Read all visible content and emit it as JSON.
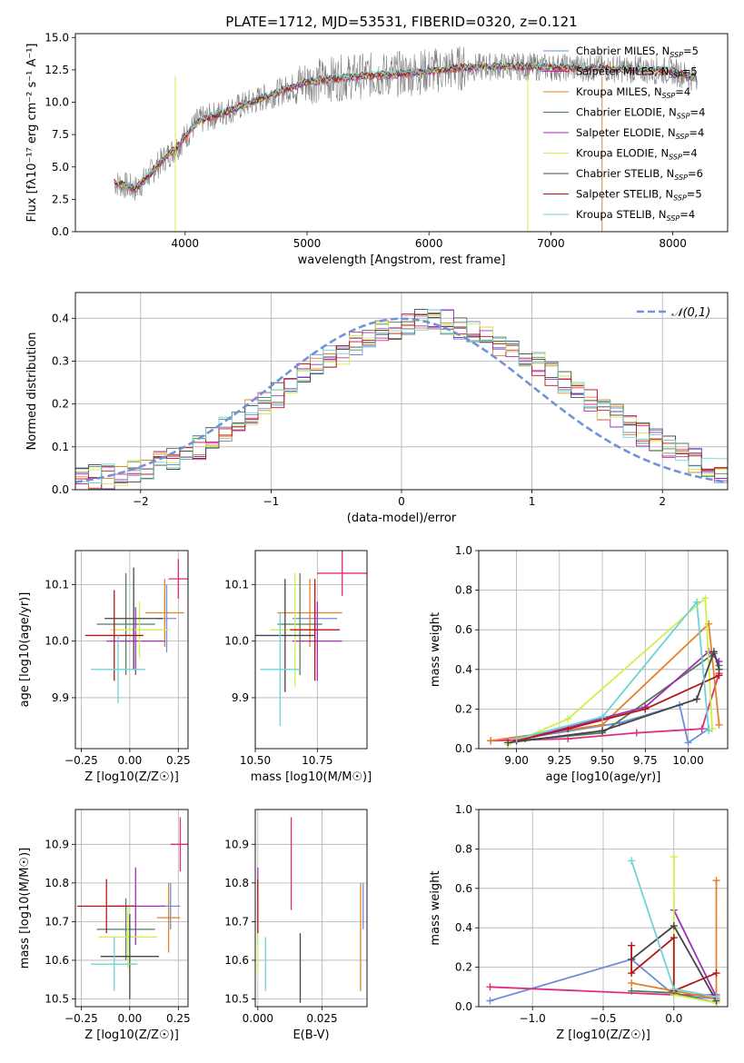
{
  "figure_title": "PLATE=1712, MJD=53531, FIBERID=0320, z=0.121",
  "colors": {
    "axes": "#000000",
    "grid": "#b0b0b0",
    "noise_spectrum": "#808080",
    "normal_curve": "#6f93d9"
  },
  "models": [
    {
      "name": "Chabrier MILES",
      "nssp": "5",
      "color": "#6f8fda"
    },
    {
      "name": "Salpeter MILES",
      "nssp": "5",
      "color": "#e02c7e"
    },
    {
      "name": "Kroupa MILES",
      "nssp": "4",
      "color": "#e3822b"
    },
    {
      "name": "Chabrier ELODIE",
      "nssp": "4",
      "color": "#4f7f58"
    },
    {
      "name": "Salpeter ELODIE",
      "nssp": "4",
      "color": "#a02fb8"
    },
    {
      "name": "Kroupa ELODIE",
      "nssp": "4",
      "color": "#d2ee4e"
    },
    {
      "name": "Chabrier STELIB",
      "nssp": "6",
      "color": "#454545"
    },
    {
      "name": "Salpeter STELIB",
      "nssp": "5",
      "color": "#b51616"
    },
    {
      "name": "Kroupa STELIB",
      "nssp": "4",
      "color": "#6fd3d6"
    }
  ],
  "chart_data": [
    {
      "id": "spectrum",
      "type": "line",
      "title": "PLATE=1712, MJD=53531, FIBERID=0320, z=0.121",
      "xlabel": "wavelength [Angstrom, rest frame]",
      "ylabel": "Flux [fλ10⁻¹⁷ erg cm⁻² s⁻¹ A⁻¹]",
      "xlim": [
        3100,
        8450
      ],
      "ylim": [
        0,
        15.3
      ],
      "xticks": [
        "4000",
        "5000",
        "6000",
        "7000",
        "8000"
      ],
      "yticks": [
        "0.0",
        "2.5",
        "5.0",
        "7.5",
        "10.0",
        "12.5",
        "15.0"
      ],
      "grid": false,
      "legend_position": "top-right",
      "legend_labels": [
        "Chabrier MILES, N_SSP=5",
        "Salpeter MILES, N_SSP=5",
        "Kroupa MILES, N_SSP=4",
        "Chabrier ELODIE, N_SSP=4",
        "Salpeter ELODIE, N_SSP=4",
        "Kroupa ELODIE, N_SSP=4",
        "Chabrier STELIB, N_SSP=6",
        "Salpeter STELIB, N_SSP=5",
        "Kroupa STELIB, N_SSP=4"
      ],
      "wavelength_range": [
        3420,
        8200
      ],
      "continuum": [
        {
          "x": 3420,
          "y": 3.8
        },
        {
          "x": 3600,
          "y": 3.3
        },
        {
          "x": 3800,
          "y": 5.4
        },
        {
          "x": 3950,
          "y": 6.7
        },
        {
          "x": 4100,
          "y": 8.5
        },
        {
          "x": 4400,
          "y": 9.5
        },
        {
          "x": 4800,
          "y": 10.9
        },
        {
          "x": 5000,
          "y": 11.6
        },
        {
          "x": 5400,
          "y": 12.0
        },
        {
          "x": 5800,
          "y": 12.2
        },
        {
          "x": 6200,
          "y": 12.6
        },
        {
          "x": 6600,
          "y": 12.8
        },
        {
          "x": 7000,
          "y": 12.7
        },
        {
          "x": 7500,
          "y": 12.6
        },
        {
          "x": 8000,
          "y": 12.4
        },
        {
          "x": 8200,
          "y": 11.8
        }
      ]
    },
    {
      "id": "residual-histogram",
      "type": "line",
      "xlabel": "(data-model)/error",
      "ylabel": "Normed distribution",
      "xlim": [
        -2.5,
        2.5
      ],
      "ylim": [
        0,
        0.46
      ],
      "xticks": [
        "−2",
        "−1",
        "0",
        "1",
        "2"
      ],
      "yticks": [
        "0.0",
        "0.1",
        "0.2",
        "0.3",
        "0.4"
      ],
      "grid": true,
      "legend_position": "top-right",
      "legend_label": "𝒩(0,1)",
      "bin_width": 0.1,
      "histogram_envelope": [
        0.025,
        0.03,
        0.03,
        0.035,
        0.04,
        0.05,
        0.06,
        0.075,
        0.09,
        0.1,
        0.12,
        0.14,
        0.16,
        0.18,
        0.2,
        0.22,
        0.24,
        0.27,
        0.29,
        0.31,
        0.32,
        0.34,
        0.35,
        0.37,
        0.38,
        0.39,
        0.4,
        0.4,
        0.39,
        0.38,
        0.37,
        0.36,
        0.34,
        0.33,
        0.31,
        0.29,
        0.27,
        0.25,
        0.23,
        0.21,
        0.19,
        0.17,
        0.15,
        0.13,
        0.115,
        0.1,
        0.085,
        0.07,
        0.055,
        0.045
      ]
    },
    {
      "id": "age-vs-z",
      "type": "scatter",
      "xlabel": "Z [log10(Z/Z☉)]",
      "ylabel": "age [log10(age/yr)]",
      "xlim": [
        -0.28,
        0.3
      ],
      "ylim": [
        9.81,
        10.16
      ],
      "xticks": [
        "−0.25",
        "0.00",
        "0.25"
      ],
      "yticks": [
        "9.9",
        "10.0",
        "10.1"
      ],
      "grid": true,
      "points": [
        {
          "x": 0.19,
          "y": 10.04,
          "xerr": 0.05,
          "yerr": 0.06,
          "color": "#6f8fda"
        },
        {
          "x": 0.25,
          "y": 10.11,
          "xerr": 0.05,
          "yerr": 0.035,
          "color": "#e02c7e"
        },
        {
          "x": 0.18,
          "y": 10.05,
          "xerr": 0.1,
          "yerr": 0.06,
          "color": "#e3822b"
        },
        {
          "x": -0.02,
          "y": 10.03,
          "xerr": 0.15,
          "yerr": 0.09,
          "color": "#4f7f58"
        },
        {
          "x": 0.03,
          "y": 10.0,
          "xerr": 0.15,
          "yerr": 0.06,
          "color": "#a02fb8"
        },
        {
          "x": 0.05,
          "y": 10.02,
          "xerr": 0.15,
          "yerr": 0.05,
          "color": "#d2ee4e"
        },
        {
          "x": 0.02,
          "y": 10.04,
          "xerr": 0.15,
          "yerr": 0.09,
          "color": "#454545"
        },
        {
          "x": -0.08,
          "y": 10.01,
          "xerr": 0.15,
          "yerr": 0.08,
          "color": "#b51616"
        },
        {
          "x": -0.06,
          "y": 9.95,
          "xerr": 0.14,
          "yerr": 0.06,
          "color": "#6fd3d6"
        }
      ]
    },
    {
      "id": "age-vs-mass",
      "type": "scatter",
      "xlabel": "mass [log10(M/M☉)]",
      "ylabel": "",
      "xlim": [
        10.5,
        10.95
      ],
      "ylim": [
        9.81,
        10.16
      ],
      "xticks": [
        "10.50",
        "10.75"
      ],
      "yticks": [
        "9.9",
        "10.0",
        "10.1"
      ],
      "grid": true,
      "points": [
        {
          "x": 10.74,
          "y": 10.04,
          "xerr": 0.09,
          "yerr": 0.06,
          "color": "#6f8fda"
        },
        {
          "x": 10.85,
          "y": 10.12,
          "xerr": 0.1,
          "yerr": 0.04,
          "color": "#e02c7e"
        },
        {
          "x": 10.72,
          "y": 10.05,
          "xerr": 0.13,
          "yerr": 0.06,
          "color": "#e3822b"
        },
        {
          "x": 10.68,
          "y": 10.03,
          "xerr": 0.09,
          "yerr": 0.09,
          "color": "#4f7f58"
        },
        {
          "x": 10.75,
          "y": 10.0,
          "xerr": 0.1,
          "yerr": 0.07,
          "color": "#a02fb8"
        },
        {
          "x": 10.66,
          "y": 10.02,
          "xerr": 0.1,
          "yerr": 0.1,
          "color": "#d2ee4e"
        },
        {
          "x": 10.62,
          "y": 10.01,
          "xerr": 0.12,
          "yerr": 0.1,
          "color": "#454545"
        },
        {
          "x": 10.74,
          "y": 10.02,
          "xerr": 0.1,
          "yerr": 0.09,
          "color": "#b51616"
        },
        {
          "x": 10.6,
          "y": 9.95,
          "xerr": 0.08,
          "yerr": 0.1,
          "color": "#6fd3d6"
        }
      ]
    },
    {
      "id": "weight-vs-age",
      "type": "line",
      "xlabel": "age [log10(age/yr)]",
      "ylabel": "mass weight",
      "xlim": [
        8.78,
        10.23
      ],
      "ylim": [
        0,
        1.0
      ],
      "xticks": [
        "9.00",
        "9.25",
        "9.50",
        "9.75",
        "10.00"
      ],
      "yticks": [
        "0.0",
        "0.2",
        "0.4",
        "0.6",
        "0.8",
        "1.0"
      ],
      "grid": true,
      "series": [
        {
          "name": "Chabrier MILES",
          "color": "#6f8fda",
          "points": [
            [
              9.1,
              0.06
            ],
            [
              9.6,
              0.13
            ],
            [
              9.95,
              0.22
            ],
            [
              10.0,
              0.03
            ],
            [
              10.12,
              0.1
            ]
          ]
        },
        {
          "name": "Salpeter MILES",
          "color": "#e02c7e",
          "points": [
            [
              8.85,
              0.04
            ],
            [
              9.3,
              0.05
            ],
            [
              9.7,
              0.08
            ],
            [
              10.08,
              0.1
            ],
            [
              10.18,
              0.38
            ]
          ]
        },
        {
          "name": "Kroupa MILES",
          "color": "#e3822b",
          "points": [
            [
              8.85,
              0.04
            ],
            [
              9.5,
              0.12
            ],
            [
              10.12,
              0.63
            ],
            [
              10.18,
              0.12
            ]
          ]
        },
        {
          "name": "Chabrier ELODIE",
          "color": "#4f7f58",
          "points": [
            [
              9.0,
              0.04
            ],
            [
              9.5,
              0.08
            ],
            [
              10.15,
              0.48
            ],
            [
              10.18,
              0.42
            ]
          ]
        },
        {
          "name": "Salpeter ELODIE",
          "color": "#a02fb8",
          "points": [
            [
              9.05,
              0.05
            ],
            [
              9.75,
              0.21
            ],
            [
              10.12,
              0.49
            ],
            [
              10.18,
              0.44
            ]
          ]
        },
        {
          "name": "Kroupa ELODIE",
          "color": "#d2ee4e",
          "points": [
            [
              8.95,
              0.02
            ],
            [
              9.3,
              0.15
            ],
            [
              10.1,
              0.76
            ],
            [
              10.14,
              0.1
            ]
          ]
        },
        {
          "name": "Chabrier STELIB",
          "color": "#454545",
          "points": [
            [
              8.95,
              0.03
            ],
            [
              9.5,
              0.09
            ],
            [
              10.05,
              0.25
            ],
            [
              10.15,
              0.49
            ],
            [
              10.18,
              0.4
            ]
          ]
        },
        {
          "name": "Salpeter STELIB",
          "color": "#b51616",
          "points": [
            [
              9.0,
              0.04
            ],
            [
              9.3,
              0.1
            ],
            [
              9.75,
              0.2
            ],
            [
              10.18,
              0.37
            ]
          ]
        },
        {
          "name": "Kroupa STELIB",
          "color": "#6fd3d6",
          "points": [
            [
              9.0,
              0.05
            ],
            [
              9.5,
              0.16
            ],
            [
              10.05,
              0.74
            ],
            [
              10.12,
              0.09
            ]
          ]
        }
      ]
    },
    {
      "id": "mass-vs-z",
      "type": "scatter",
      "xlabel": "Z [log10(Z/Z☉)]",
      "ylabel": "mass [log10(M/M☉)]",
      "xlim": [
        -0.28,
        0.3
      ],
      "ylim": [
        10.48,
        10.99
      ],
      "xticks": [
        "−0.25",
        "0.00",
        "0.25"
      ],
      "yticks": [
        "10.5",
        "10.6",
        "10.7",
        "10.8",
        "10.9"
      ],
      "grid": true,
      "points": [
        {
          "x": 0.21,
          "y": 10.74,
          "xerr": 0.05,
          "yerr": 0.06,
          "color": "#6f8fda"
        },
        {
          "x": 0.26,
          "y": 10.9,
          "xerr": 0.05,
          "yerr": 0.07,
          "color": "#e02c7e"
        },
        {
          "x": 0.2,
          "y": 10.71,
          "xerr": 0.06,
          "yerr": 0.09,
          "color": "#e3822b"
        },
        {
          "x": -0.02,
          "y": 10.68,
          "xerr": 0.15,
          "yerr": 0.08,
          "color": "#4f7f58"
        },
        {
          "x": 0.03,
          "y": 10.74,
          "xerr": 0.15,
          "yerr": 0.1,
          "color": "#a02fb8"
        },
        {
          "x": -0.01,
          "y": 10.66,
          "xerr": 0.15,
          "yerr": 0.08,
          "color": "#d2ee4e"
        },
        {
          "x": 0.0,
          "y": 10.61,
          "xerr": 0.15,
          "yerr": 0.11,
          "color": "#454545"
        },
        {
          "x": -0.12,
          "y": 10.74,
          "xerr": 0.15,
          "yerr": 0.07,
          "color": "#b51616"
        },
        {
          "x": -0.08,
          "y": 10.59,
          "xerr": 0.12,
          "yerr": 0.07,
          "color": "#6fd3d6"
        }
      ]
    },
    {
      "id": "mass-vs-ebv",
      "type": "scatter",
      "xlabel": "E(B-V)",
      "ylabel": "",
      "xlim": [
        -0.001,
        0.0425
      ],
      "ylim": [
        10.48,
        10.99
      ],
      "xticks": [
        "0.000",
        "0.025"
      ],
      "yticks": [
        "10.5",
        "10.6",
        "10.7",
        "10.8",
        "10.9"
      ],
      "grid": true,
      "points": [
        {
          "x": 0.041,
          "y": 10.74,
          "yerr": 0.06,
          "color": "#6f8fda"
        },
        {
          "x": 0.013,
          "y": 10.85,
          "yerr": 0.12,
          "color": "#e02c7e"
        },
        {
          "x": 0.04,
          "y": 10.66,
          "yerr": 0.14,
          "color": "#e3822b"
        },
        {
          "x": 0.0,
          "y": 10.7,
          "yerr": 0.06,
          "color": "#4f7f58"
        },
        {
          "x": 0.0,
          "y": 10.8,
          "yerr": 0.04,
          "color": "#a02fb8"
        },
        {
          "x": 0.0,
          "y": 10.66,
          "yerr": 0.1,
          "color": "#d2ee4e"
        },
        {
          "x": 0.0165,
          "y": 10.58,
          "yerr": 0.09,
          "color": "#454545"
        },
        {
          "x": 0.0,
          "y": 10.74,
          "yerr": 0.07,
          "color": "#b51616"
        },
        {
          "x": 0.003,
          "y": 10.59,
          "yerr": 0.07,
          "color": "#6fd3d6"
        }
      ]
    },
    {
      "id": "weight-vs-z",
      "type": "line",
      "xlabel": "Z [log10(Z/Z☉)]",
      "ylabel": "mass weight",
      "xlim": [
        -1.38,
        0.38
      ],
      "ylim": [
        0,
        1.0
      ],
      "xticks": [
        "−1.0",
        "−0.5",
        "0.0"
      ],
      "yticks": [
        "0.0",
        "0.2",
        "0.4",
        "0.6",
        "0.8",
        "1.0"
      ],
      "grid": true,
      "series": [
        {
          "name": "Chabrier MILES",
          "color": "#6f8fda",
          "points": [
            [
              -1.3,
              0.03
            ],
            [
              -0.3,
              0.24
            ],
            [
              0.0,
              0.06
            ],
            [
              0.3,
              0.04
            ]
          ]
        },
        {
          "name": "Salpeter MILES",
          "color": "#e02c7e",
          "points": [
            [
              -1.3,
              0.1
            ],
            [
              0.0,
              0.06
            ],
            [
              0.3,
              0.06
            ]
          ]
        },
        {
          "name": "Kroupa MILES",
          "color": "#e3822b",
          "points": [
            [
              -0.3,
              0.12
            ],
            [
              0.0,
              0.08
            ],
            [
              0.3,
              0.04
            ],
            [
              0.3,
              0.64
            ]
          ]
        },
        {
          "name": "Chabrier ELODIE",
          "color": "#4f7f58",
          "points": [
            [
              -0.3,
              0.08
            ],
            [
              0.0,
              0.07
            ],
            [
              0.3,
              0.02
            ]
          ]
        },
        {
          "name": "Salpeter ELODIE",
          "color": "#a02fb8",
          "points": [
            [
              0.0,
              0.49
            ],
            [
              0.3,
              0.05
            ]
          ]
        },
        {
          "name": "Kroupa ELODIE",
          "color": "#d2ee4e",
          "points": [
            [
              0.0,
              0.76
            ],
            [
              0.0,
              0.06
            ],
            [
              0.3,
              0.02
            ]
          ]
        },
        {
          "name": "Chabrier STELIB",
          "color": "#454545",
          "points": [
            [
              -0.3,
              0.24
            ],
            [
              0.0,
              0.41
            ],
            [
              0.3,
              0.03
            ]
          ]
        },
        {
          "name": "Salpeter STELIB",
          "color": "#b51616",
          "points": [
            [
              -0.3,
              0.31
            ],
            [
              -0.3,
              0.17
            ],
            [
              0.0,
              0.35
            ],
            [
              0.0,
              0.08
            ],
            [
              0.3,
              0.17
            ]
          ]
        },
        {
          "name": "Kroupa STELIB",
          "color": "#6fd3d6",
          "points": [
            [
              -0.3,
              0.74
            ],
            [
              0.0,
              0.09
            ],
            [
              0.3,
              0.05
            ]
          ]
        }
      ]
    }
  ]
}
